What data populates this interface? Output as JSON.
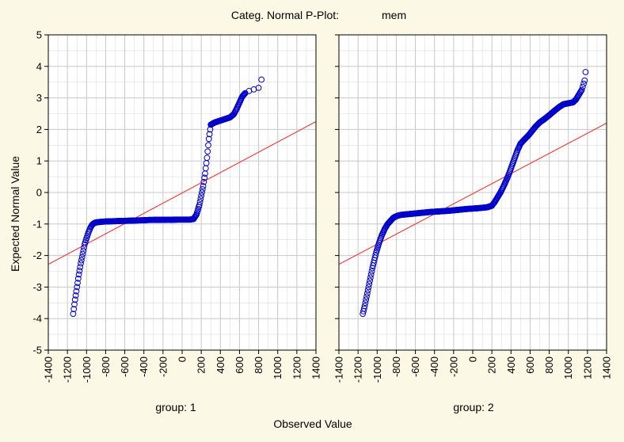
{
  "chart_data": {
    "type": "scatter",
    "title": "Categ. Normal P-Plot:",
    "variable": "mem",
    "xlabel": "Observed Value",
    "ylabel": "Expected Normal Value",
    "xlim": [
      -1400,
      1400
    ],
    "ylim": [
      -5,
      5
    ],
    "xticks": [
      -1400,
      -1200,
      -1000,
      -800,
      -600,
      -400,
      -200,
      0,
      200,
      400,
      600,
      800,
      1000,
      1200,
      1400
    ],
    "yticks": [
      -5,
      -4,
      -3,
      -2,
      -1,
      0,
      1,
      2,
      3,
      4,
      5
    ],
    "grid": true,
    "colors": {
      "points": "#0000c8",
      "line": "#ff2020",
      "grid": "#c8c8c8",
      "background": "#fcf8e6",
      "plot_bg": "#ffffff"
    },
    "panels": [
      {
        "label": "group: 1",
        "reference_line": {
          "x": [
            -1400,
            1400
          ],
          "y": [
            -2.28,
            2.25
          ]
        },
        "curve": [
          [
            -1140,
            -3.85
          ],
          [
            -1120,
            -3.4
          ],
          [
            -1100,
            -3.0
          ],
          [
            -1080,
            -2.6
          ],
          [
            -1060,
            -2.25
          ],
          [
            -1040,
            -1.95
          ],
          [
            -1020,
            -1.65
          ],
          [
            -1000,
            -1.45
          ],
          [
            -980,
            -1.27
          ],
          [
            -960,
            -1.12
          ],
          [
            -940,
            -1.02
          ],
          [
            -920,
            -0.97
          ],
          [
            -900,
            -0.95
          ],
          [
            -850,
            -0.93
          ],
          [
            -800,
            -0.92
          ],
          [
            -700,
            -0.91
          ],
          [
            -600,
            -0.9
          ],
          [
            -500,
            -0.89
          ],
          [
            -400,
            -0.88
          ],
          [
            -330,
            -0.87
          ],
          [
            0,
            -0.86
          ],
          [
            80,
            -0.86
          ],
          [
            120,
            -0.84
          ],
          [
            150,
            -0.7
          ],
          [
            180,
            -0.4
          ],
          [
            200,
            -0.1
          ],
          [
            220,
            0.2
          ],
          [
            240,
            0.6
          ],
          [
            260,
            1.1
          ],
          [
            280,
            1.7
          ],
          [
            300,
            2.15
          ],
          [
            340,
            2.22
          ],
          [
            400,
            2.28
          ],
          [
            450,
            2.33
          ],
          [
            500,
            2.38
          ],
          [
            540,
            2.48
          ],
          [
            570,
            2.65
          ],
          [
            600,
            2.85
          ],
          [
            630,
            3.05
          ],
          [
            660,
            3.15
          ]
        ],
        "outliers": [
          [
            -230,
            -0.87
          ],
          [
            -120,
            -0.87
          ],
          [
            -100,
            -0.87
          ],
          [
            700,
            3.22
          ],
          [
            750,
            3.27
          ],
          [
            800,
            3.32
          ],
          [
            830,
            3.58
          ]
        ]
      },
      {
        "label": "group: 2",
        "reference_line": {
          "x": [
            -1400,
            1400
          ],
          "y": [
            -2.28,
            2.2
          ]
        },
        "curve": [
          [
            -1150,
            -3.85
          ],
          [
            -1130,
            -3.6
          ],
          [
            -1110,
            -3.3
          ],
          [
            -1090,
            -3.0
          ],
          [
            -1070,
            -2.7
          ],
          [
            -1050,
            -2.4
          ],
          [
            -1030,
            -2.15
          ],
          [
            -1010,
            -1.9
          ],
          [
            -980,
            -1.6
          ],
          [
            -950,
            -1.35
          ],
          [
            -920,
            -1.15
          ],
          [
            -890,
            -1.0
          ],
          [
            -860,
            -0.9
          ],
          [
            -830,
            -0.8
          ],
          [
            -790,
            -0.74
          ],
          [
            -750,
            -0.71
          ],
          [
            -650,
            -0.68
          ],
          [
            -550,
            -0.65
          ],
          [
            -450,
            -0.62
          ],
          [
            -350,
            -0.6
          ],
          [
            -250,
            -0.58
          ],
          [
            -150,
            -0.55
          ],
          [
            -50,
            -0.52
          ],
          [
            50,
            -0.5
          ],
          [
            150,
            -0.47
          ],
          [
            200,
            -0.42
          ],
          [
            230,
            -0.3
          ],
          [
            260,
            -0.15
          ],
          [
            290,
            0.0
          ],
          [
            320,
            0.18
          ],
          [
            350,
            0.38
          ],
          [
            380,
            0.6
          ],
          [
            410,
            0.85
          ],
          [
            440,
            1.1
          ],
          [
            470,
            1.35
          ],
          [
            500,
            1.55
          ],
          [
            540,
            1.68
          ],
          [
            580,
            1.8
          ],
          [
            620,
            1.95
          ],
          [
            660,
            2.1
          ],
          [
            700,
            2.22
          ],
          [
            750,
            2.33
          ],
          [
            800,
            2.45
          ],
          [
            850,
            2.58
          ],
          [
            900,
            2.7
          ],
          [
            950,
            2.8
          ],
          [
            1000,
            2.83
          ],
          [
            1050,
            2.86
          ],
          [
            1080,
            2.95
          ],
          [
            1100,
            3.05
          ],
          [
            1120,
            3.15
          ],
          [
            1140,
            3.25
          ]
        ],
        "outliers": [
          [
            1150,
            3.35
          ],
          [
            1160,
            3.45
          ],
          [
            1170,
            3.55
          ],
          [
            1180,
            3.82
          ]
        ]
      }
    ]
  }
}
